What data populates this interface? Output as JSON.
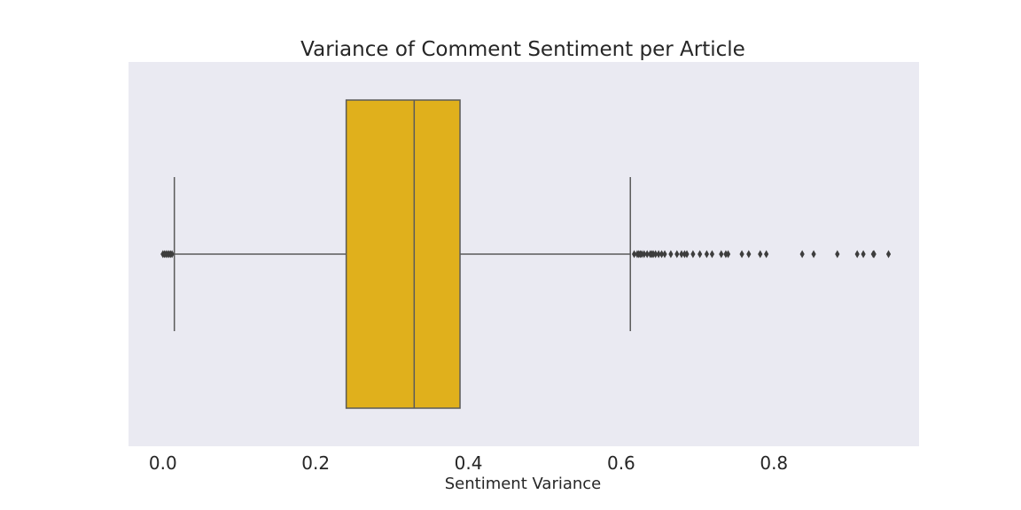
{
  "chart_data": {
    "type": "box",
    "orientation": "horizontal",
    "title": "Variance of Comment Sentiment per Article",
    "xlabel": "Sentiment Variance",
    "ylabel": "",
    "xlim": [
      -0.045,
      0.99
    ],
    "xticks": [
      {
        "value": 0.0,
        "label": "0.0"
      },
      {
        "value": 0.2,
        "label": "0.2"
      },
      {
        "value": 0.4,
        "label": "0.4"
      },
      {
        "value": 0.6,
        "label": "0.6"
      },
      {
        "value": 0.8,
        "label": "0.8"
      }
    ],
    "grid": false,
    "box": {
      "whisker_low": 0.015,
      "q1": 0.24,
      "median": 0.329,
      "q3": 0.389,
      "whisker_high": 0.612
    },
    "outliers": [
      0.0,
      0.002,
      0.004,
      0.006,
      0.008,
      0.01,
      0.012,
      0.617,
      0.621,
      0.623,
      0.625,
      0.627,
      0.63,
      0.634,
      0.638,
      0.64,
      0.642,
      0.645,
      0.649,
      0.653,
      0.657,
      0.665,
      0.673,
      0.679,
      0.683,
      0.686,
      0.694,
      0.703,
      0.712,
      0.719,
      0.731,
      0.737,
      0.74,
      0.758,
      0.767,
      0.782,
      0.79,
      0.837,
      0.852,
      0.883,
      0.909,
      0.917,
      0.93,
      0.931,
      0.95
    ],
    "colors": {
      "background": "#eaeaf2",
      "box_fill": "#e0b01c",
      "line": "#5a5a5a",
      "outlier": "#3d3d3d"
    }
  }
}
